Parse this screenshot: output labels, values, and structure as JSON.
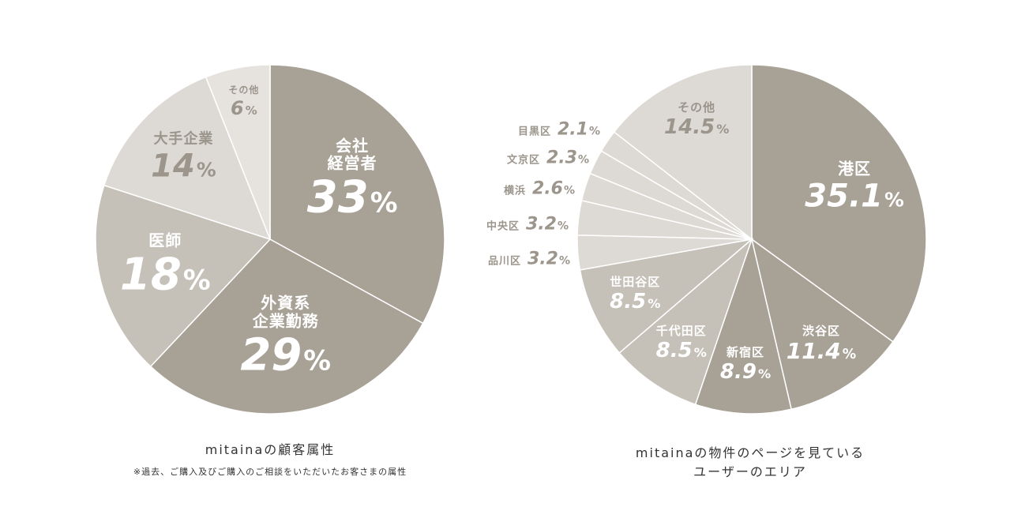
{
  "colors": {
    "dark": "#a8a196",
    "mid": "#c5c0b8",
    "light": "#dddad5",
    "pale": "#e6e3df",
    "text_light": "#ffffff",
    "text_dark": "#9b958c",
    "separator": "#ffffff"
  },
  "left_chart": {
    "caption": "mitainaの顧客属性",
    "note": "※過去、ご購入及びご購入のご相談をいただいたお客さまの属性"
  },
  "right_chart": {
    "caption_line1": "mitainaの物件のページを見ている",
    "caption_line2": "ユーザーのエリア"
  },
  "chart_data": [
    {
      "type": "pie",
      "title": "mitainaの顧客属性",
      "slices": [
        {
          "label": "会社経営者",
          "label_lines": [
            "会社",
            "経営者"
          ],
          "value": 33,
          "display": "33",
          "tone": "dark"
        },
        {
          "label": "外資系企業勤務",
          "label_lines": [
            "外資系",
            "企業勤務"
          ],
          "value": 29,
          "display": "29",
          "tone": "dark"
        },
        {
          "label": "医師",
          "label_lines": [
            "医師"
          ],
          "value": 18,
          "display": "18",
          "tone": "mid"
        },
        {
          "label": "大手企業",
          "label_lines": [
            "大手企業"
          ],
          "value": 14,
          "display": "14",
          "tone": "light"
        },
        {
          "label": "その他",
          "label_lines": [
            "その他"
          ],
          "value": 6,
          "display": "6",
          "tone": "pale"
        }
      ],
      "unit": "%"
    },
    {
      "type": "pie",
      "title": "mitainaの物件のページを見ているユーザーのエリア",
      "slices": [
        {
          "label": "港区",
          "value": 35.1,
          "display": "35.1",
          "tone": "dark"
        },
        {
          "label": "渋谷区",
          "value": 11.4,
          "display": "11.4",
          "tone": "dark"
        },
        {
          "label": "新宿区",
          "value": 8.9,
          "display": "8.9",
          "tone": "dark"
        },
        {
          "label": "千代田区",
          "value": 8.5,
          "display": "8.5",
          "tone": "mid"
        },
        {
          "label": "世田谷区",
          "value": 8.5,
          "display": "8.5",
          "tone": "mid"
        },
        {
          "label": "品川区",
          "value": 3.2,
          "display": "3.2",
          "tone": "light"
        },
        {
          "label": "中央区",
          "value": 3.2,
          "display": "3.2",
          "tone": "light"
        },
        {
          "label": "横浜",
          "value": 2.6,
          "display": "2.6",
          "tone": "light"
        },
        {
          "label": "文京区",
          "value": 2.3,
          "display": "2.3",
          "tone": "light"
        },
        {
          "label": "目黒区",
          "value": 2.1,
          "display": "2.1",
          "tone": "light"
        },
        {
          "label": "その他",
          "value": 14.5,
          "display": "14.5",
          "tone": "light"
        }
      ],
      "unit": "%"
    }
  ]
}
